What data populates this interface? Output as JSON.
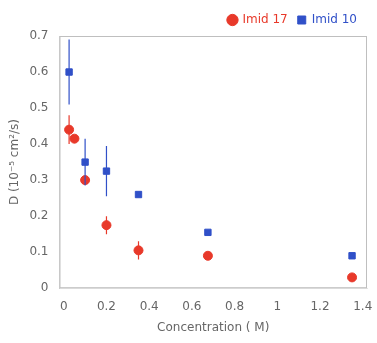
{
  "chart_data": {
    "type": "scatter",
    "xlabel": "Concentration ( M)",
    "ylabel": "D (10⁻⁵ cm²/s)",
    "xlim": [
      -0.02,
      1.42
    ],
    "ylim": [
      0,
      0.7
    ],
    "xticks": [
      0.0,
      0.2,
      0.4,
      0.6,
      0.8,
      1.0,
      1.2,
      1.4
    ],
    "yticks": [
      0.0,
      0.1,
      0.2,
      0.3,
      0.4,
      0.5,
      0.6,
      0.7
    ],
    "grid": false,
    "legend": "upper right",
    "series": [
      {
        "name": "Imid 17",
        "color": "#e8392a",
        "marker": "circle",
        "x": [
          0.025,
          0.05,
          0.1,
          0.2,
          0.35,
          0.675,
          1.35
        ],
        "values": [
          0.44,
          0.415,
          0.3,
          0.175,
          0.105,
          0.09,
          0.03
        ],
        "yerr": [
          0.04,
          0.0,
          0.0,
          0.025,
          0.025,
          0.0,
          0.0
        ]
      },
      {
        "name": "Imid 10",
        "color": "#3050c8",
        "marker": "square",
        "x": [
          0.025,
          0.1,
          0.2,
          0.35,
          0.675,
          1.35
        ],
        "values": [
          0.6,
          0.35,
          0.325,
          0.26,
          0.155,
          0.09
        ],
        "yerr": [
          0.09,
          0.065,
          0.07,
          0.0,
          0.0,
          0.0
        ]
      }
    ]
  }
}
